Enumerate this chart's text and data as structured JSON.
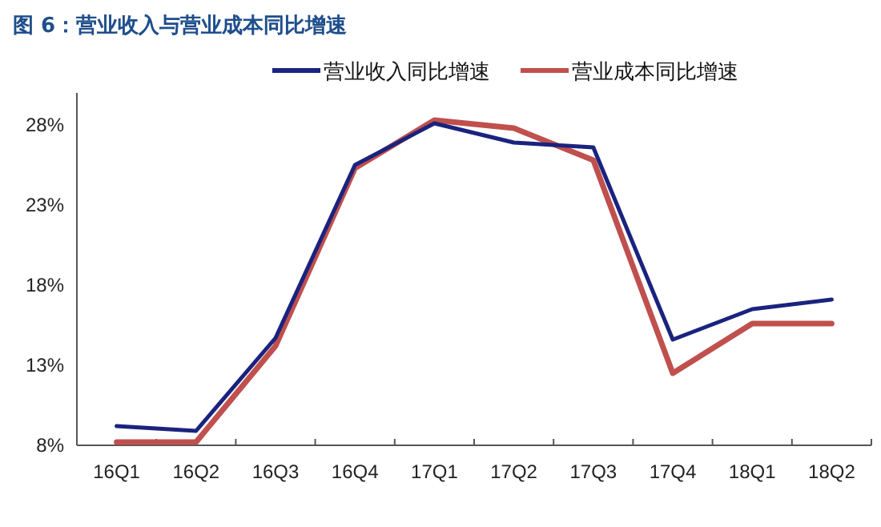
{
  "chart_data": {
    "type": "line",
    "title": "图 6：营业收入与营业成本同比增速",
    "categories": [
      "16Q1",
      "16Q2",
      "16Q3",
      "16Q4",
      "17Q1",
      "17Q2",
      "17Q3",
      "17Q4",
      "18Q1",
      "18Q2"
    ],
    "series": [
      {
        "name": "营业收入同比增速",
        "color": "#1a237e",
        "values": [
          9.2,
          8.9,
          14.7,
          25.5,
          28.1,
          26.9,
          26.6,
          14.6,
          16.5,
          17.1
        ]
      },
      {
        "name": "营业成本同比增速",
        "color": "#c0504d",
        "values": [
          8.2,
          8.2,
          14.2,
          25.3,
          28.3,
          27.8,
          25.8,
          12.5,
          15.6,
          15.6
        ]
      }
    ],
    "ylim": [
      8,
      30
    ],
    "yticks": [
      {
        "value": 8,
        "label": "8%"
      },
      {
        "value": 13,
        "label": "13%"
      },
      {
        "value": 18,
        "label": "18%"
      },
      {
        "value": 23,
        "label": "23%"
      },
      {
        "value": 28,
        "label": "28%"
      }
    ],
    "legend": "top",
    "grid": false
  }
}
